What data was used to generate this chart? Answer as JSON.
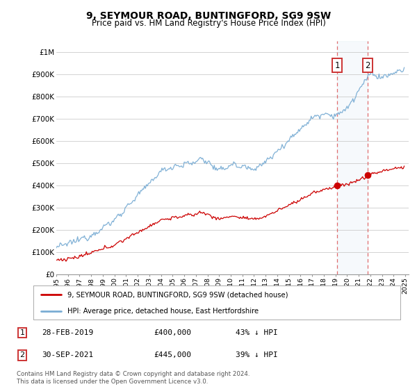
{
  "title": "9, SEYMOUR ROAD, BUNTINGFORD, SG9 9SW",
  "subtitle": "Price paid vs. HM Land Registry's House Price Index (HPI)",
  "x_start_year": 1995,
  "x_end_year": 2025,
  "ylim": [
    0,
    1050000
  ],
  "yticks": [
    0,
    100000,
    200000,
    300000,
    400000,
    500000,
    600000,
    700000,
    800000,
    900000,
    1000000
  ],
  "ytick_labels": [
    "£0",
    "£100K",
    "£200K",
    "£300K",
    "£400K",
    "£500K",
    "£600K",
    "£700K",
    "£800K",
    "£900K",
    "£1M"
  ],
  "hpi_color": "#7aadd4",
  "price_color": "#cc0000",
  "sale1_date": 2019.17,
  "sale1_price": 400000,
  "sale2_date": 2021.75,
  "sale2_price": 445000,
  "legend_label_price": "9, SEYMOUR ROAD, BUNTINGFORD, SG9 9SW (detached house)",
  "legend_label_hpi": "HPI: Average price, detached house, East Hertfordshire",
  "background_color": "#ffffff",
  "grid_color": "#cccccc",
  "shade_color": "#dce9f5",
  "vline_color": "#dd5555",
  "footnote": "Contains HM Land Registry data © Crown copyright and database right 2024.\nThis data is licensed under the Open Government Licence v3.0."
}
